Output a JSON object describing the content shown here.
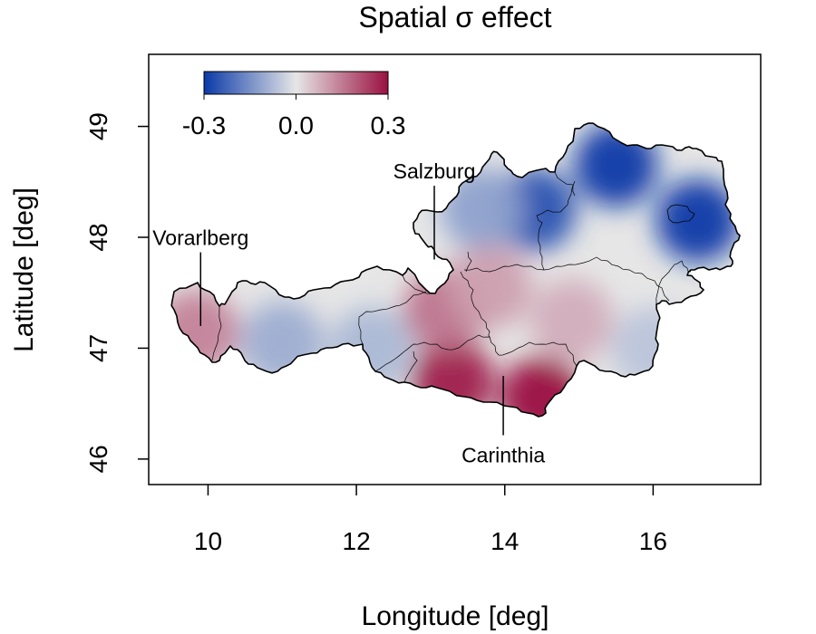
{
  "title": "Spatial σ effect",
  "axes": {
    "xlabel": "Longitude [deg]",
    "ylabel": "Latitude [deg]",
    "xlim": [
      9.2,
      17.45
    ],
    "ylim": [
      45.77,
      49.65
    ],
    "xticks": [
      10,
      12,
      14,
      16
    ],
    "yticks": [
      46,
      47,
      48,
      49
    ],
    "xtick_labels": [
      "10",
      "12",
      "14",
      "16"
    ],
    "ytick_labels": [
      "46",
      "47",
      "48",
      "49"
    ]
  },
  "colorbar": {
    "min": -0.3,
    "max": 0.3,
    "tick_labels": [
      "-0.3",
      "0.0",
      "0.3"
    ],
    "colors": [
      "#0a3aa8",
      "#e6e6e6",
      "#9a1040"
    ]
  },
  "annotations": [
    {
      "label": "Vorarlberg",
      "lon": 9.9,
      "lat": 47.2,
      "text_lat": 47.93
    },
    {
      "label": "Salzburg",
      "lon": 13.05,
      "lat": 47.8,
      "text_lat": 48.53
    },
    {
      "label": "Carinthia",
      "lon": 13.98,
      "lat": 46.75,
      "text_lat": 45.97
    }
  ],
  "map_data": {
    "type": "choropleth-field",
    "region": "Austria",
    "field_blobs": [
      {
        "lon": 15.5,
        "lat": 48.65,
        "value": -0.3
      },
      {
        "lon": 16.6,
        "lat": 48.15,
        "value": -0.3
      },
      {
        "lon": 14.4,
        "lat": 48.25,
        "value": -0.26
      },
      {
        "lon": 13.7,
        "lat": 48.25,
        "value": -0.12
      },
      {
        "lon": 12.2,
        "lat": 47.0,
        "value": -0.08
      },
      {
        "lon": 11.0,
        "lat": 47.05,
        "value": -0.1
      },
      {
        "lon": 16.0,
        "lat": 47.0,
        "value": -0.06
      },
      {
        "lon": 14.5,
        "lat": 46.55,
        "value": 0.3
      },
      {
        "lon": 13.3,
        "lat": 46.7,
        "value": 0.28
      },
      {
        "lon": 13.2,
        "lat": 47.35,
        "value": 0.16
      },
      {
        "lon": 13.8,
        "lat": 47.55,
        "value": 0.1
      },
      {
        "lon": 9.85,
        "lat": 47.15,
        "value": 0.14
      },
      {
        "lon": 14.9,
        "lat": 47.25,
        "value": 0.08
      }
    ]
  }
}
